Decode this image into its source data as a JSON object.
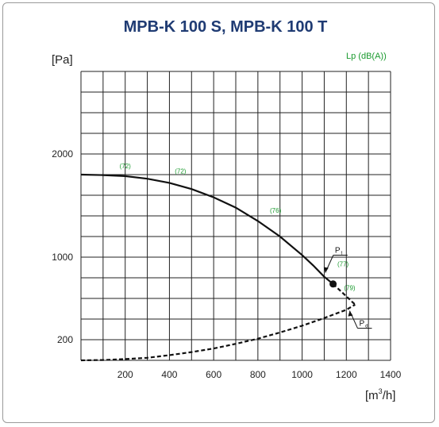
{
  "chart_data": {
    "type": "line",
    "title": "MPB-K 100 S, MPB-K 100 T",
    "ylabel": "[Pa]",
    "xlabel_main": "[m",
    "xlabel_sup": "3",
    "xlabel_end": "/h]",
    "noise_label": "Lp (dB(A))",
    "xlim": [
      0,
      1400
    ],
    "x_ticks": [
      200,
      400,
      600,
      800,
      1000,
      1200,
      1400
    ],
    "y_ticks": [
      {
        "label": "2000",
        "value": 2000
      },
      {
        "label": "1000",
        "value": 1000
      },
      {
        "label": "200",
        "value": 200
      }
    ],
    "grid": true,
    "series": [
      {
        "name": "Pt",
        "label_main": "P",
        "label_sub": "t",
        "style": "solid",
        "x": [
          0,
          100,
          200,
          300,
          400,
          500,
          600,
          700,
          800,
          900,
          1000,
          1050,
          1100,
          1140
        ],
        "y": [
          1800,
          1795,
          1785,
          1760,
          1720,
          1660,
          1580,
          1480,
          1350,
          1200,
          1020,
          920,
          810,
          740
        ]
      },
      {
        "name": "Pt-dashed",
        "style": "dashed",
        "x": [
          1140,
          1190,
          1240
        ],
        "y": [
          740,
          640,
          540
        ]
      },
      {
        "name": "Pd",
        "label_main": "P",
        "label_sub": "d",
        "style": "dashed",
        "x": [
          0,
          100,
          200,
          300,
          400,
          500,
          600,
          700,
          800,
          900,
          1000,
          1100,
          1200,
          1240
        ],
        "y": [
          0,
          3,
          12,
          25,
          50,
          80,
          115,
          160,
          210,
          270,
          335,
          410,
          490,
          540
        ]
      }
    ],
    "operating_point": {
      "x": 1140,
      "y": 740
    },
    "noise_annotations": [
      {
        "text": "(72)",
        "x": 200,
        "y": 1860
      },
      {
        "text": "(72)",
        "x": 450,
        "y": 1810
      },
      {
        "text": "(76)",
        "x": 880,
        "y": 1430
      },
      {
        "text": "(77)",
        "x": 1185,
        "y": 910
      },
      {
        "text": "(79)",
        "x": 1215,
        "y": 680
      }
    ]
  },
  "colors": {
    "title": "#1f3b73",
    "curve": "#111111",
    "noise": "#1a9a2e",
    "grid": "#222222"
  }
}
